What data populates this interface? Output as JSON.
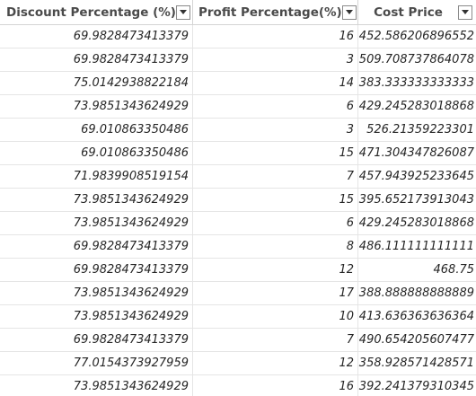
{
  "columns": [
    {
      "label": "Discount Percentage (%)",
      "has_filter_dropdown": true
    },
    {
      "label": "Profit Percentage(%)",
      "has_filter_dropdown": true
    },
    {
      "label": "Cost Price",
      "has_filter_dropdown": true
    }
  ],
  "rows": [
    [
      "69.9828473413379",
      "16",
      "452.586206896552"
    ],
    [
      "69.9828473413379",
      "3",
      "509.708737864078"
    ],
    [
      "75.0142938822184",
      "14",
      "383.333333333333"
    ],
    [
      "73.9851343624929",
      "6",
      "429.245283018868"
    ],
    [
      "69.010863350486",
      "3",
      "526.21359223301"
    ],
    [
      "69.010863350486",
      "15",
      "471.304347826087"
    ],
    [
      "71.9839908519154",
      "7",
      "457.943925233645"
    ],
    [
      "73.9851343624929",
      "15",
      "395.652173913043"
    ],
    [
      "73.9851343624929",
      "6",
      "429.245283018868"
    ],
    [
      "69.9828473413379",
      "8",
      "486.111111111111"
    ],
    [
      "69.9828473413379",
      "12",
      "468.75"
    ],
    [
      "73.9851343624929",
      "17",
      "388.888888888889"
    ],
    [
      "73.9851343624929",
      "10",
      "413.636363636364"
    ],
    [
      "69.9828473413379",
      "7",
      "490.654205607477"
    ],
    [
      "77.0154373927959",
      "12",
      "358.928571428571"
    ],
    [
      "73.9851343624929",
      "16",
      "392.241379310345"
    ]
  ],
  "colors": {
    "header_text": "#4a4a4a",
    "cell_text": "#252525",
    "grid_line": "#e5e5e5"
  }
}
